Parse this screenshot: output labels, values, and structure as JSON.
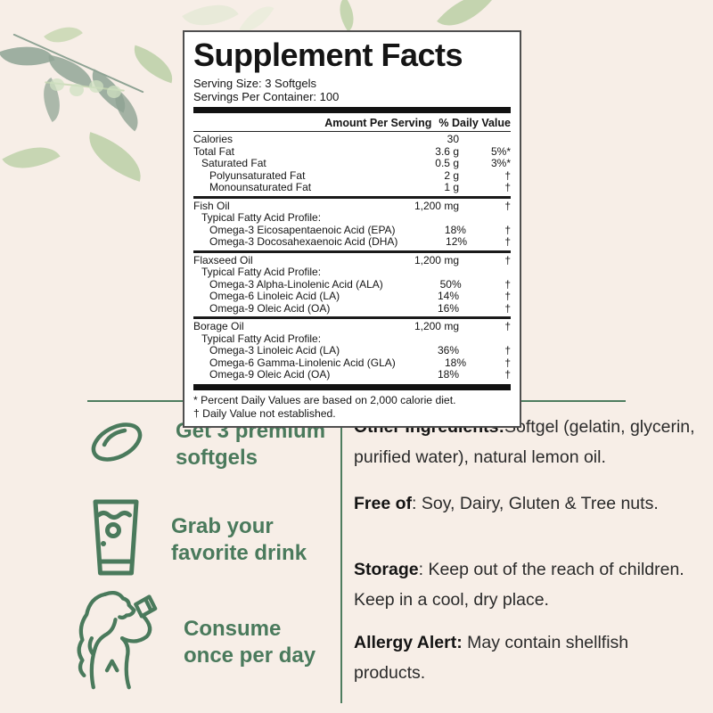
{
  "page": {
    "background_color": "#f7eee7",
    "accent_green": "#4a7a5c",
    "divider_green": "#4e7d5f"
  },
  "facts_panel": {
    "title": "Supplement Facts",
    "serving_size": "Serving Size: 3 Softgels",
    "servings_per_container": "Servings Per Container: 100",
    "amount_header": "Amount Per Serving",
    "dv_header": "% Daily Value",
    "sections": [
      {
        "rows": [
          {
            "name": "Calories",
            "indent": 0,
            "amount": "30",
            "dv": ""
          },
          {
            "name": "Total Fat",
            "indent": 0,
            "amount": "3.6 g",
            "dv": "5%*"
          },
          {
            "name": "Saturated Fat",
            "indent": 1,
            "amount": "0.5 g",
            "dv": "3%*"
          },
          {
            "name": "Polyunsaturated Fat",
            "indent": 2,
            "amount": "2 g",
            "dv": "†"
          },
          {
            "name": "Monounsaturated Fat",
            "indent": 2,
            "amount": "1 g",
            "dv": "†"
          }
        ]
      },
      {
        "rows": [
          {
            "name": "Fish Oil",
            "indent": 0,
            "amount": "1,200 mg",
            "dv": "†"
          },
          {
            "name": "Typical Fatty Acid Profile:",
            "indent": 1,
            "amount": "",
            "dv": ""
          },
          {
            "name": "Omega-3 Eicosapentaenoic Acid (EPA)",
            "indent": 2,
            "amount": "18%",
            "dv": "†"
          },
          {
            "name": "Omega-3 Docosahexaenoic Acid (DHA)",
            "indent": 2,
            "amount": "12%",
            "dv": "†"
          }
        ]
      },
      {
        "rows": [
          {
            "name": "Flaxseed Oil",
            "indent": 0,
            "amount": "1,200 mg",
            "dv": "†"
          },
          {
            "name": "Typical Fatty Acid Profile:",
            "indent": 1,
            "amount": "",
            "dv": ""
          },
          {
            "name": "Omega-3 Alpha-Linolenic Acid (ALA)",
            "indent": 2,
            "amount": "50%",
            "dv": "†"
          },
          {
            "name": "Omega-6 Linoleic Acid (LA)",
            "indent": 2,
            "amount": "14%",
            "dv": "†"
          },
          {
            "name": "Omega-9 Oleic Acid (OA)",
            "indent": 2,
            "amount": "16%",
            "dv": "†"
          }
        ]
      },
      {
        "rows": [
          {
            "name": "Borage Oil",
            "indent": 0,
            "amount": "1,200 mg",
            "dv": "†"
          },
          {
            "name": "Typical Fatty Acid Profile:",
            "indent": 1,
            "amount": "",
            "dv": ""
          },
          {
            "name": "Omega-3 Linoleic Acid (LA)",
            "indent": 2,
            "amount": "36%",
            "dv": "†"
          },
          {
            "name": "Omega-6 Gamma-Linolenic Acid (GLA)",
            "indent": 2,
            "amount": "18%",
            "dv": "†"
          },
          {
            "name": "Omega-9 Oleic Acid (OA)",
            "indent": 2,
            "amount": "18%",
            "dv": "†"
          }
        ]
      }
    ],
    "footnotes": [
      "* Percent Daily Values are based on 2,000 calorie diet.",
      "† Daily Value not established."
    ]
  },
  "benefits": {
    "items": [
      {
        "icon": "softgel-icon",
        "lines": [
          "Get 3 premium",
          "softgels"
        ]
      },
      {
        "icon": "glass-icon",
        "lines": [
          "Grab your",
          "favorite drink"
        ]
      },
      {
        "icon": "drinking-person-icon",
        "lines": [
          "Consume",
          "once per day"
        ]
      }
    ]
  },
  "info": {
    "blocks": [
      {
        "bold": "Other Ingredients:",
        "rest": "Softgel (gelatin, glycerin, purified water), natural lemon oil."
      },
      {
        "bold": "Free of",
        "rest": ": Soy, Dairy, Gluten & Tree nuts."
      },
      {
        "bold": "Storage",
        "rest": ": Keep out of the reach of children. Keep in a cool, dry place."
      },
      {
        "bold": "Allergy Alert:",
        "rest": " May contain shellfish products."
      }
    ]
  }
}
